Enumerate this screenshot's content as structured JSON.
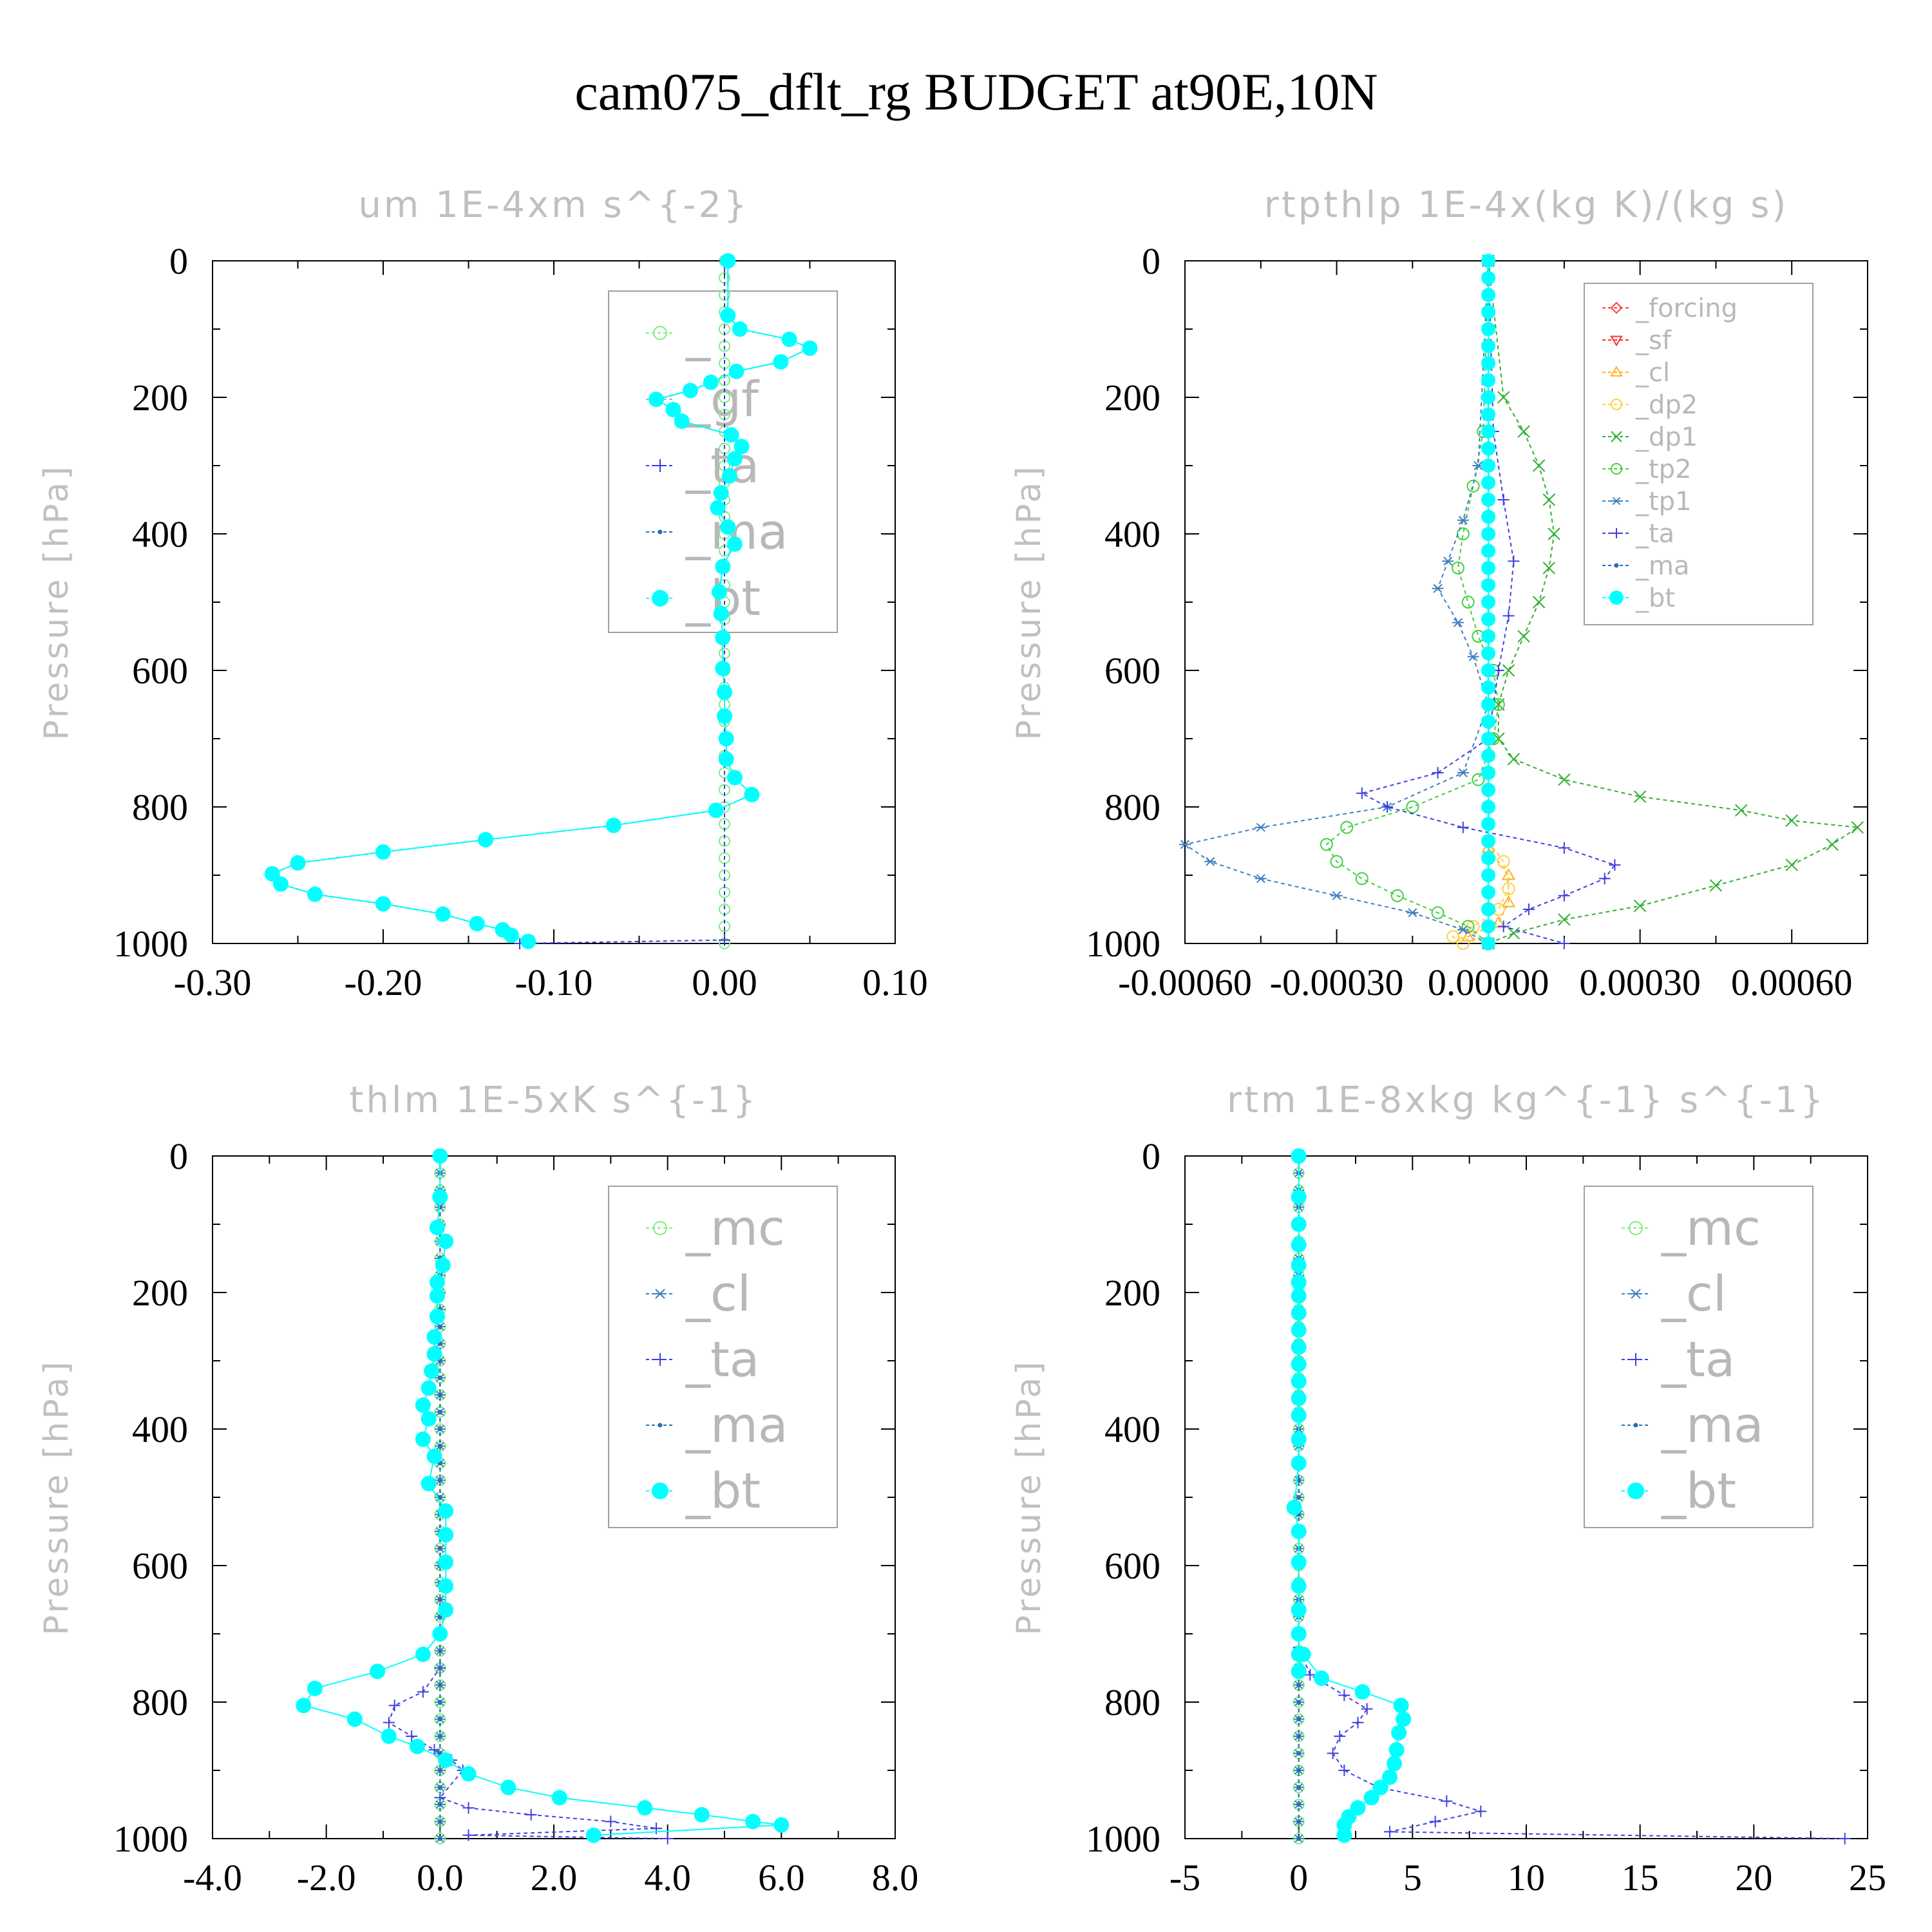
{
  "figure": {
    "title": "cam075_dflt_rg  BUDGET at90E,10N"
  },
  "chart_data": [
    {
      "type": "line",
      "title": "um  1E-4xm s^{-2}",
      "ylabel": "Pressure [hPa]",
      "xlim": [
        -0.3,
        0.1
      ],
      "ylim": [
        1000,
        0
      ],
      "xticks": [
        "-0.30",
        "-0.20",
        "-0.10",
        "0.00",
        "0.10"
      ],
      "yticks": [
        "0",
        "200",
        "400",
        "600",
        "800",
        "1000"
      ],
      "legend": {
        "position": "top-right",
        "size": "large",
        "entries": [
          "_",
          "_gf",
          "_ta",
          "_ma",
          "_bt"
        ]
      },
      "series": [
        {
          "name": "_",
          "color": "#7cf07c",
          "marker": "circle-open",
          "x": [
            0,
            0
          ],
          "y": [
            0,
            1000
          ]
        },
        {
          "name": "_gf",
          "color": "#b0b0b0",
          "marker": "none",
          "x": [
            0,
            0
          ],
          "y": [
            0,
            1000
          ]
        },
        {
          "name": "_ta",
          "color": "#3a3ae0",
          "marker": "plus",
          "x": [
            0,
            0,
            -0.12
          ],
          "y": [
            0,
            995,
            1000
          ]
        },
        {
          "name": "_ma",
          "color": "#2a70b0",
          "marker": "dot",
          "x": [
            0.002,
            0.002,
            0.009,
            0.038,
            0.05,
            0.033,
            0.007,
            -0.008,
            -0.02,
            -0.04,
            -0.03,
            -0.025,
            0.004,
            0.01,
            0.006,
            0.003,
            -0.002,
            -0.004,
            0.002,
            0.006,
            -0.001,
            -0.003,
            -0.002,
            -0.001,
            -0.001,
            0.0,
            0.0,
            0.001,
            0.001,
            0.006,
            0.016,
            -0.005,
            -0.065,
            -0.14,
            -0.2,
            -0.25,
            -0.265,
            -0.26,
            -0.24,
            -0.2,
            -0.165,
            -0.145,
            -0.13,
            -0.125,
            -0.115
          ],
          "y": [
            0,
            80,
            100,
            115,
            128,
            148,
            162,
            178,
            190,
            203,
            218,
            235,
            255,
            272,
            290,
            315,
            340,
            362,
            390,
            415,
            448,
            485,
            517,
            552,
            597,
            632,
            667,
            700,
            730,
            757,
            782,
            805,
            827,
            848,
            866,
            882,
            898,
            913,
            928,
            942,
            957,
            971,
            980,
            988,
            997
          ]
        },
        {
          "name": "_bt",
          "color": "#00ffff",
          "marker": "filled-circle",
          "x": [
            0.002,
            0.002,
            0.009,
            0.038,
            0.05,
            0.033,
            0.007,
            -0.008,
            -0.02,
            -0.04,
            -0.03,
            -0.025,
            0.004,
            0.01,
            0.006,
            0.003,
            -0.002,
            -0.004,
            0.002,
            0.006,
            -0.001,
            -0.003,
            -0.002,
            -0.001,
            -0.001,
            0.0,
            0.0,
            0.001,
            0.001,
            0.006,
            0.016,
            -0.005,
            -0.065,
            -0.14,
            -0.2,
            -0.25,
            -0.265,
            -0.26,
            -0.24,
            -0.2,
            -0.165,
            -0.145,
            -0.13,
            -0.125,
            -0.115
          ],
          "y": [
            0,
            80,
            100,
            115,
            128,
            148,
            162,
            178,
            190,
            203,
            218,
            235,
            255,
            272,
            290,
            315,
            340,
            362,
            390,
            415,
            448,
            485,
            517,
            552,
            597,
            632,
            667,
            700,
            730,
            757,
            782,
            805,
            827,
            848,
            866,
            882,
            898,
            913,
            928,
            942,
            957,
            971,
            980,
            988,
            997
          ]
        }
      ]
    },
    {
      "type": "line",
      "title": "rtpthlp  1E-4x(kg K)/(kg s)",
      "ylabel": "Pressure [hPa]",
      "xlim": [
        -0.0006,
        0.00075
      ],
      "ylim": [
        1000,
        0
      ],
      "xticks": [
        "-0.00060",
        "-0.00030",
        "0.00000",
        "0.00030",
        "0.00060"
      ],
      "xtick_values": [
        -0.0006,
        -0.0003,
        0.0,
        0.0003,
        0.0006
      ],
      "yticks": [
        "0",
        "200",
        "400",
        "600",
        "800",
        "1000"
      ],
      "legend": {
        "position": "top-right",
        "size": "small",
        "entries": [
          "_forcing",
          "_sf",
          "_cl",
          "_dp2",
          "_dp1",
          "_tp2",
          "_tp1",
          "_ta",
          "_ma",
          "_bt"
        ]
      },
      "series": [
        {
          "name": "_forcing",
          "color": "#ff4040",
          "marker": "diamond",
          "x": [
            0,
            0
          ],
          "y": [
            0,
            1000
          ]
        },
        {
          "name": "_sf",
          "color": "#ff3030",
          "marker": "triangle-down",
          "x": [
            0,
            0
          ],
          "y": [
            0,
            1000
          ]
        },
        {
          "name": "_cl",
          "color": "#ffb020",
          "marker": "triangle-up",
          "x": [
            0,
            0,
            4e-05,
            4e-05,
            2e-05,
            -4e-05,
            0
          ],
          "y": [
            0,
            860,
            900,
            940,
            970,
            990,
            1000
          ]
        },
        {
          "name": "_dp2",
          "color": "#ffd040",
          "marker": "circle-open",
          "x": [
            0,
            0,
            3e-05,
            4e-05,
            2e-05,
            -3e-05,
            -7e-05,
            -5e-05
          ],
          "y": [
            0,
            850,
            880,
            920,
            950,
            975,
            990,
            1000
          ]
        },
        {
          "name": "_dp1",
          "color": "#30b030",
          "marker": "x",
          "x": [
            0,
            3e-05,
            7e-05,
            0.0001,
            0.00012,
            0.00013,
            0.00012,
            0.0001,
            7e-05,
            4e-05,
            2e-05,
            2e-05,
            5e-05,
            0.00015,
            0.0003,
            0.0005,
            0.0006,
            0.00073,
            0.00068,
            0.0006,
            0.00045,
            0.0003,
            0.00015,
            5e-05,
            0
          ],
          "y": [
            0,
            200,
            250,
            300,
            350,
            400,
            450,
            500,
            550,
            600,
            650,
            700,
            730,
            760,
            785,
            805,
            820,
            830,
            855,
            885,
            915,
            945,
            965,
            985,
            1000
          ]
        },
        {
          "name": "_tp2",
          "color": "#40d040",
          "marker": "circle-open",
          "x": [
            0,
            -1e-05,
            -3e-05,
            -5e-05,
            -6e-05,
            -4e-05,
            -2e-05,
            1e-05,
            2e-05,
            1e-05,
            -2e-05,
            -0.00015,
            -0.00028,
            -0.00032,
            -0.0003,
            -0.00025,
            -0.00018,
            -0.0001,
            -4e-05,
            0
          ],
          "y": [
            0,
            250,
            330,
            400,
            450,
            500,
            550,
            600,
            650,
            700,
            760,
            800,
            830,
            855,
            880,
            905,
            930,
            955,
            975,
            1000
          ]
        },
        {
          "name": "_tp1",
          "color": "#4080c0",
          "marker": "star",
          "x": [
            0,
            -2e-05,
            -5e-05,
            -8e-05,
            -0.0001,
            -6e-05,
            -3e-05,
            0,
            -5e-05,
            -0.0002,
            -0.00045,
            -0.0006,
            -0.00055,
            -0.00045,
            -0.0003,
            -0.00015,
            -5e-05,
            0
          ],
          "y": [
            0,
            300,
            380,
            440,
            480,
            530,
            580,
            650,
            750,
            800,
            830,
            855,
            880,
            905,
            930,
            955,
            980,
            1000
          ]
        },
        {
          "name": "_ta",
          "color": "#4040e0",
          "marker": "plus",
          "x": [
            0,
            1e-05,
            3e-05,
            5e-05,
            4e-05,
            2e-05,
            0,
            -0.0001,
            -0.00025,
            -0.0002,
            -5e-05,
            0.00015,
            0.00025,
            0.00023,
            0.00015,
            8e-05,
            3e-05,
            0.00015
          ],
          "y": [
            0,
            250,
            350,
            440,
            520,
            600,
            700,
            750,
            780,
            800,
            830,
            860,
            885,
            905,
            930,
            950,
            975,
            1000
          ]
        },
        {
          "name": "_ma",
          "color": "#2a70b0",
          "marker": "dot",
          "x": [
            0,
            0
          ],
          "y": [
            0,
            1000
          ]
        },
        {
          "name": "_bt",
          "color": "#00ffff",
          "marker": "filled-circle",
          "x": [
            0,
            0
          ],
          "y": [
            0,
            1000
          ]
        }
      ]
    },
    {
      "type": "line",
      "title": "thlm  1E-5xK s^{-1}",
      "ylabel": "Pressure [hPa]",
      "xlim": [
        -4.0,
        8.0
      ],
      "ylim": [
        1000,
        0
      ],
      "xticks": [
        "-4.0",
        "-2.0",
        "0.0",
        "2.0",
        "4.0",
        "6.0",
        "8.0"
      ],
      "yticks": [
        "0",
        "200",
        "400",
        "600",
        "800",
        "1000"
      ],
      "legend": {
        "position": "top-right",
        "size": "large",
        "entries": [
          "_mc",
          "_cl",
          "_ta",
          "_ma",
          "_bt"
        ]
      },
      "series": [
        {
          "name": "_mc",
          "color": "#7cf07c",
          "marker": "circle-open",
          "x": [
            0,
            0
          ],
          "y": [
            0,
            1000
          ]
        },
        {
          "name": "_cl",
          "color": "#4080c0",
          "marker": "star",
          "x": [
            0,
            0
          ],
          "y": [
            0,
            1000
          ]
        },
        {
          "name": "_ta",
          "color": "#4040e0",
          "marker": "plus",
          "x": [
            0,
            0,
            -0.3,
            -0.8,
            -0.9,
            -0.5,
            -0.1,
            0.2,
            0.4,
            0.0,
            0.5,
            1.6,
            3.0,
            3.8,
            0.5,
            4.0
          ],
          "y": [
            0,
            750,
            785,
            805,
            830,
            850,
            870,
            885,
            900,
            940,
            955,
            965,
            975,
            985,
            995,
            1000
          ]
        },
        {
          "name": "_ma",
          "color": "#2a70b0",
          "marker": "dot",
          "x": [
            0,
            0
          ],
          "y": [
            0,
            1000
          ]
        },
        {
          "name": "_bt",
          "color": "#00ffff",
          "marker": "filled-circle",
          "x": [
            0.0,
            0.0,
            -0.05,
            0.1,
            0.05,
            -0.05,
            -0.05,
            -0.05,
            -0.1,
            -0.1,
            -0.15,
            -0.2,
            -0.3,
            -0.2,
            -0.3,
            -0.1,
            -0.2,
            0.1,
            0.1,
            0.1,
            0.1,
            0.1,
            0.0,
            -0.3,
            -1.1,
            -2.2,
            -2.4,
            -1.5,
            -0.9,
            -0.4,
            0.1,
            0.5,
            1.2,
            2.1,
            3.6,
            4.6,
            5.5,
            6.0,
            2.7
          ],
          "y": [
            0,
            60,
            105,
            125,
            160,
            185,
            205,
            235,
            265,
            290,
            315,
            340,
            365,
            385,
            415,
            440,
            480,
            520,
            555,
            595,
            630,
            665,
            700,
            730,
            755,
            780,
            805,
            825,
            850,
            865,
            885,
            905,
            925,
            940,
            955,
            965,
            975,
            980,
            995
          ]
        }
      ]
    },
    {
      "type": "line",
      "title": "rtm  1E-8xkg kg^{-1} s^{-1}",
      "ylabel": "Pressure [hPa]",
      "xlim": [
        -5,
        25
      ],
      "ylim": [
        1000,
        0
      ],
      "xticks": [
        "-5",
        "0",
        "5",
        "10",
        "15",
        "20",
        "25"
      ],
      "yticks": [
        "0",
        "200",
        "400",
        "600",
        "800",
        "1000"
      ],
      "legend": {
        "position": "top-right",
        "size": "large",
        "entries": [
          "_mc",
          "_cl",
          "_ta",
          "_ma",
          "_bt"
        ]
      },
      "series": [
        {
          "name": "_mc",
          "color": "#7cf07c",
          "marker": "circle-open",
          "x": [
            0,
            0
          ],
          "y": [
            0,
            1000
          ]
        },
        {
          "name": "_cl",
          "color": "#4080c0",
          "marker": "star",
          "x": [
            0,
            0
          ],
          "y": [
            0,
            1000
          ]
        },
        {
          "name": "_ta",
          "color": "#4040e0",
          "marker": "plus",
          "x": [
            0,
            0,
            0.5,
            2.0,
            3.0,
            2.6,
            1.8,
            1.5,
            2.0,
            3.5,
            6.5,
            8.0,
            6.0,
            4.0,
            24.0
          ],
          "y": [
            0,
            720,
            760,
            790,
            810,
            830,
            850,
            875,
            900,
            925,
            945,
            960,
            975,
            990,
            1000
          ]
        },
        {
          "name": "_ma",
          "color": "#2a70b0",
          "marker": "dot",
          "x": [
            0,
            0
          ],
          "y": [
            0,
            1000
          ]
        },
        {
          "name": "_bt",
          "color": "#00ffff",
          "marker": "filled-circle",
          "x": [
            0.0,
            0.0,
            0.0,
            0.0,
            0.0,
            0.0,
            0.0,
            0.0,
            0.0,
            0.0,
            0.0,
            0.0,
            0.0,
            0.0,
            0.0,
            0.0,
            -0.2,
            0.0,
            0.0,
            0.0,
            0.0,
            0.0,
            0.0,
            0.0,
            0.2,
            1.0,
            2.8,
            4.5,
            4.6,
            4.4,
            4.3,
            4.2,
            4.0,
            3.6,
            3.2,
            2.6,
            2.2,
            2.0,
            2.0
          ],
          "y": [
            0,
            60,
            100,
            130,
            160,
            185,
            205,
            230,
            255,
            280,
            305,
            330,
            355,
            380,
            415,
            450,
            515,
            550,
            595,
            630,
            665,
            700,
            730,
            755,
            730,
            765,
            785,
            805,
            825,
            845,
            870,
            890,
            910,
            925,
            940,
            955,
            968,
            980,
            995
          ]
        }
      ]
    }
  ]
}
